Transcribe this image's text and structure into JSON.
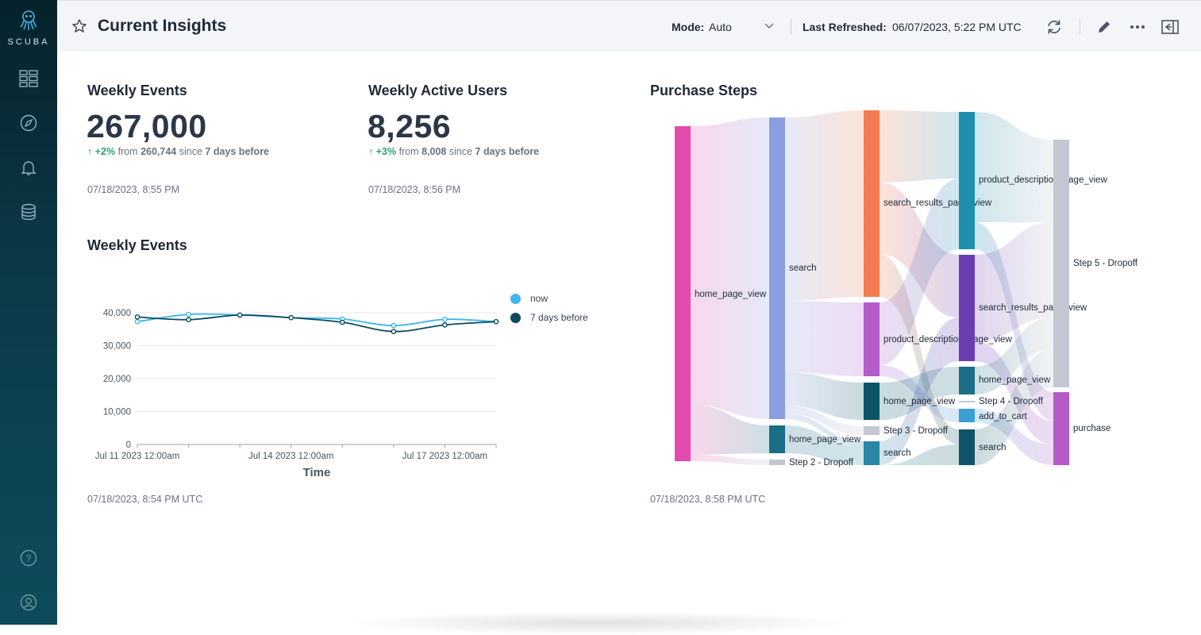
{
  "app": {
    "brand": "SCUBA",
    "title": "Current Insights",
    "mode_label": "Mode:",
    "mode_value": "Auto",
    "last_refreshed_label": "Last Refreshed:",
    "last_refreshed_value": "06/07/2023, 5:22 PM UTC"
  },
  "sidebar": {
    "items": [
      {
        "icon": "dashboard-grid-icon"
      },
      {
        "icon": "compass-icon"
      },
      {
        "icon": "bell-icon"
      },
      {
        "icon": "database-icon"
      },
      {
        "icon": "help-icon"
      },
      {
        "icon": "user-icon"
      }
    ]
  },
  "header_actions": [
    {
      "icon": "refresh-icon"
    },
    {
      "icon": "edit-pencil-icon"
    },
    {
      "icon": "more-options-icon"
    },
    {
      "icon": "collapse-panel-icon"
    }
  ],
  "cards": {
    "weekly_events": {
      "title": "Weekly Events",
      "value": "267,000",
      "delta": "+2%",
      "from_text": "from",
      "from_value": "260,744",
      "since_text": "since",
      "since_value": "7 days before",
      "timestamp": "07/18/2023, 8:55 PM"
    },
    "weekly_active_users": {
      "title": "Weekly Active Users",
      "value": "8,256",
      "delta": "+3%",
      "from_text": "from",
      "from_value": "8,008",
      "since_text": "since",
      "since_value": "7 days before",
      "timestamp": "07/18/2023, 8:56 PM"
    },
    "weekly_events_chart": {
      "title": "Weekly Events",
      "timestamp": "07/18/2023, 8:54 PM UTC"
    },
    "purchase_steps": {
      "title": "Purchase Steps",
      "timestamp": "07/18/2023, 8:58 PM UTC"
    }
  },
  "colors": {
    "now": "#3fb6ec",
    "seven_days_before": "#0b4a5c",
    "positive": "#2e9f72"
  },
  "chart_data": [
    {
      "type": "line",
      "title": "Weekly Events",
      "xlabel": "Time",
      "ylabel": "",
      "x": [
        "Jul 11 2023 12:00am",
        "Jul 12 2023 12:00am",
        "Jul 13 2023 12:00am",
        "Jul 14 2023 12:00am",
        "Jul 15 2023 12:00am",
        "Jul 16 2023 12:00am",
        "Jul 17 2023 12:00am",
        "Jul 18 2023 12:00am"
      ],
      "x_tick_labels": [
        "Jul 11 2023 12:00am",
        "Jul 14 2023 12:00am",
        "Jul 17 2023 12:00am"
      ],
      "y_ticks": [
        "0",
        "10,000",
        "20,000",
        "30,000",
        "40,000"
      ],
      "ylim": [
        0,
        40000
      ],
      "grid": true,
      "legend_position": "right",
      "series": [
        {
          "name": "now",
          "values": [
            37300,
            39500,
            39300,
            38500,
            38100,
            36100,
            38000,
            37300
          ]
        },
        {
          "name": "7 days before",
          "values": [
            38700,
            37900,
            39300,
            38500,
            37100,
            34300,
            36300,
            37300
          ]
        }
      ]
    },
    {
      "type": "sankey",
      "title": "Purchase Steps",
      "columns": [
        [
          "home_page_view"
        ],
        [
          "search",
          "home_page_view",
          "Step 2 - Dropoff"
        ],
        [
          "search_results_page_view",
          "product_description_page_view",
          "home_page_view",
          "Step 3 - Dropoff",
          "search"
        ],
        [
          "product_description_page_view",
          "search_results_page_view",
          "home_page_view",
          "Step 4 - Dropoff",
          "add_to_cart",
          "search"
        ],
        [
          "Step 5 - Dropoff",
          "purchase"
        ]
      ],
      "node_colors": [
        [
          "#e24aad"
        ],
        [
          "#8a9ee0",
          "#1c6e86",
          "#c3c7d1"
        ],
        [
          "#f47c52",
          "#b35cc9",
          "#0b5567",
          "#c3c7d1",
          "#2a86a6"
        ],
        [
          "#1f8fae",
          "#6a3eb0",
          "#1c6e86",
          "#c3c7d1",
          "#3aa0d4",
          "#0f5468"
        ],
        [
          "#c3c7d1",
          "#b35cc9"
        ]
      ],
      "values": [
        [
          100
        ],
        [
          90,
          8.5,
          1.5
        ],
        [
          56,
          22,
          11.5,
          2.5,
          7
        ],
        [
          41,
          31,
          7.5,
          1,
          4,
          10.5
        ],
        [
          72,
          22
        ]
      ]
    }
  ]
}
